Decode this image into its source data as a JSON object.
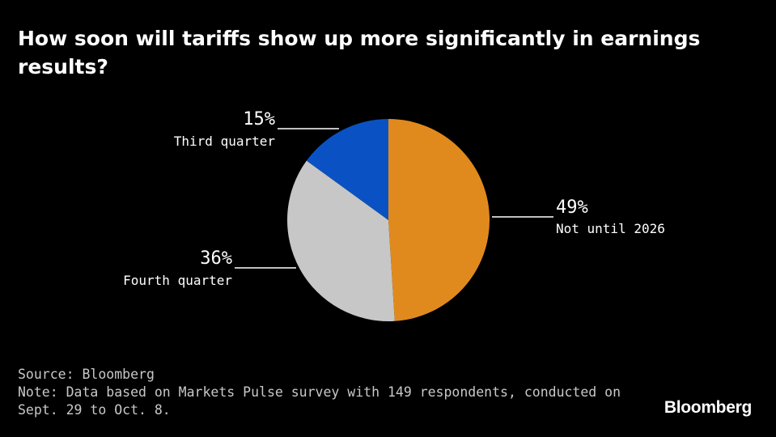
{
  "chart_data": {
    "type": "pie",
    "title": "How soon will tariffs show up more significantly in earnings results?",
    "slices": [
      {
        "label": "Not until 2026",
        "value": 49,
        "value_label": "49%",
        "color": "#e08a1e"
      },
      {
        "label": "Fourth quarter",
        "value": 36,
        "value_label": "36%",
        "color": "#c7c7c7"
      },
      {
        "label": "Third quarter",
        "value": 15,
        "value_label": "15%",
        "color": "#0a52c4"
      }
    ],
    "start": "12 o'clock",
    "direction": "clockwise"
  },
  "footer": {
    "source": "Source: Bloomberg",
    "note": "Note: Data based on Markets Pulse survey with 149 respondents, conducted on Sept. 29 to Oct. 8."
  },
  "brand": {
    "logo_text": "Bloomberg"
  }
}
